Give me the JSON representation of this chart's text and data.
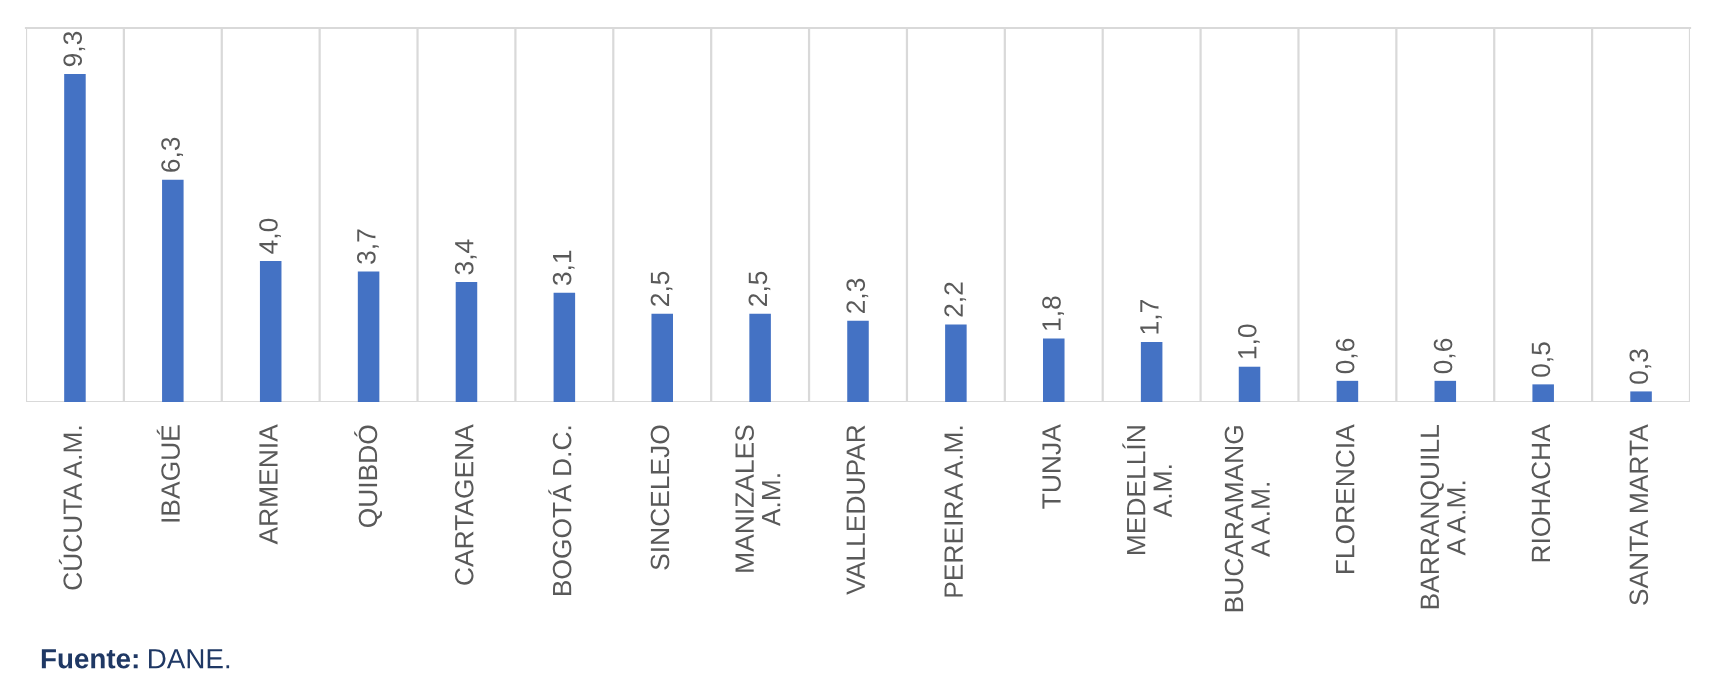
{
  "chart_data": {
    "type": "bar",
    "categories": [
      "CÚCUTA A.M.",
      "IBAGUÉ",
      "ARMENIA",
      "QUIBDÓ",
      "CARTAGENA",
      "BOGOTÁ D.C.",
      "SINCELEJO",
      "MANIZALES\nA.M.",
      "VALLEDUPAR",
      "PEREIRA A.M.",
      "TUNJA",
      "MEDELLÍN\nA.M.",
      "BUCARAMANG\nA A.M.",
      "FLORENCIA",
      "BARRANQUILL\nA A.M.",
      "RIOHACHA",
      "SANTA MARTA"
    ],
    "values": [
      9.3,
      6.3,
      4.0,
      3.7,
      3.4,
      3.1,
      2.5,
      2.5,
      2.3,
      2.2,
      1.8,
      1.7,
      1.0,
      0.6,
      0.6,
      0.5,
      0.3
    ],
    "value_labels": [
      "9,3",
      "6,3",
      "4,0",
      "3,7",
      "3,4",
      "3,1",
      "2,5",
      "2,5",
      "2,3",
      "2,2",
      "1,8",
      "1,7",
      "1,0",
      "0,6",
      "0,6",
      "0,5",
      "0,3"
    ],
    "color": "#4472c4",
    "grid": "x",
    "annotations": [
      "Fuente: DANE."
    ]
  }
}
